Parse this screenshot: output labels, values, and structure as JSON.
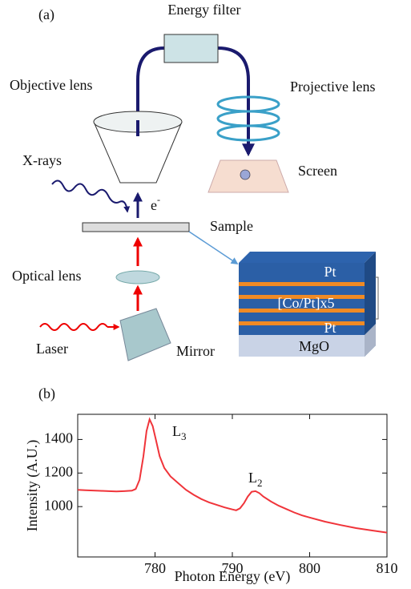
{
  "diagram": {
    "panel_label": "(a)",
    "labels": {
      "energy_filter": "Energy filter",
      "objective_lens": "Objective lens",
      "projective_lens": "Projective lens",
      "screen": "Screen",
      "xrays": "X-rays",
      "electron": "e",
      "electron_charge": "-",
      "sample": "Sample",
      "optical_lens": "Optical lens",
      "laser": "Laser",
      "mirror": "Mirror"
    },
    "stack": {
      "top": "Pt",
      "multilayer": "[Co/Pt]x5",
      "bottom": "Pt",
      "substrate": "MgO"
    }
  },
  "chart_data": {
    "type": "line",
    "panel_label": "(b)",
    "x_label": "Photon Energy (eV)",
    "y_label": "Intensity (A.U.)",
    "x": [
      770,
      771,
      772,
      773,
      774,
      775,
      776,
      777,
      777.5,
      778,
      778.5,
      778.9,
      779.3,
      779.7,
      780.1,
      780.6,
      781.2,
      782,
      783,
      784,
      785,
      786,
      787,
      788,
      789,
      790,
      790.5,
      791,
      791.5,
      792,
      792.5,
      793,
      793.5,
      794,
      795,
      796,
      797,
      798,
      799,
      800,
      802,
      804,
      806,
      808,
      810
    ],
    "series": [
      {
        "color": "#f0343a",
        "values": [
          1100,
          1098,
          1096,
          1094,
          1092,
          1090,
          1092,
          1095,
          1105,
          1160,
          1300,
          1450,
          1520,
          1480,
          1400,
          1300,
          1230,
          1180,
          1140,
          1100,
          1070,
          1045,
          1025,
          1010,
          995,
          983,
          978,
          990,
          1020,
          1060,
          1088,
          1092,
          1080,
          1060,
          1030,
          1005,
          985,
          965,
          948,
          935,
          910,
          890,
          872,
          858,
          845
        ]
      }
    ],
    "annotations": [
      {
        "text": "L",
        "subscript": "3"
      },
      {
        "text": "L",
        "subscript": "2"
      }
    ],
    "xlim": [
      770,
      810
    ],
    "ylim": [
      700,
      1550
    ],
    "xticks": [
      780,
      790,
      800,
      810
    ],
    "yticks": [
      1000,
      1200,
      1400
    ],
    "grid": false
  }
}
